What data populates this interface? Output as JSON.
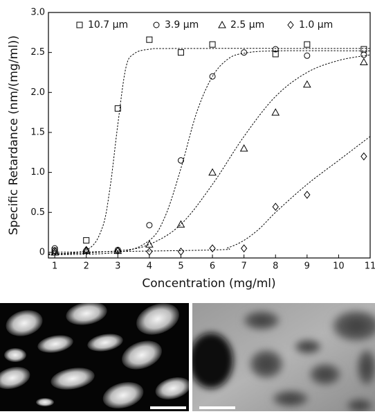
{
  "chart_data": {
    "type": "scatter",
    "x_label": "Concentration  (mg/ml)",
    "y_label": "Specific Retardance  (nm/(mg/ml))",
    "xlim": [
      0.8,
      11
    ],
    "ylim": [
      -0.07,
      3.0
    ],
    "xticks": [
      1,
      2,
      3,
      4,
      5,
      6,
      7,
      8,
      9,
      10,
      11
    ],
    "yticks": [
      0,
      0.5,
      {
        "value": 1,
        "label": "1.0"
      },
      1.5,
      {
        "value": 2,
        "label": "2.0"
      },
      2.5,
      {
        "value": 3,
        "label": "3.0"
      }
    ],
    "legend": "top",
    "series": [
      {
        "name": "10.7 µm",
        "color": "#000000",
        "marker": "square",
        "x": [
          1,
          2,
          3,
          4,
          5,
          6,
          8,
          9,
          10.8
        ],
        "values": [
          0.02,
          0.15,
          1.8,
          2.66,
          2.5,
          2.6,
          2.48,
          2.6,
          2.54
        ]
      },
      {
        "name": "3.9 µm",
        "color": "#000000",
        "marker": "circle",
        "x": [
          1,
          2,
          3,
          4,
          5,
          6,
          7,
          8,
          9,
          10.8
        ],
        "values": [
          0.05,
          0.02,
          0.03,
          0.34,
          1.15,
          2.2,
          2.5,
          2.54,
          2.46,
          2.47
        ]
      },
      {
        "name": "2.5 µm",
        "color": "#000000",
        "marker": "triangle",
        "x": [
          1,
          2,
          3,
          4,
          5,
          6,
          7,
          8,
          9,
          10.8
        ],
        "values": [
          0,
          0.02,
          0.02,
          0.1,
          0.35,
          1.0,
          1.3,
          1.75,
          2.1,
          2.38
        ]
      },
      {
        "name": "1.0 µm",
        "color": "#000000",
        "marker": "diamond",
        "x": [
          1,
          2,
          3,
          4,
          5,
          6,
          7,
          8,
          9,
          10.8
        ],
        "values": [
          0.02,
          0.03,
          0.02,
          0.01,
          0.01,
          0.05,
          0.05,
          0.57,
          0.72,
          1.2
        ]
      }
    ],
    "fits": [
      {
        "x": [
          0.8,
          2,
          2.5,
          2.75,
          3,
          3.25,
          3.5,
          4,
          5,
          11
        ],
        "values": [
          -0.02,
          0.03,
          0.3,
          0.8,
          1.6,
          2.3,
          2.48,
          2.54,
          2.55,
          2.55
        ]
      },
      {
        "x": [
          0.8,
          3,
          4,
          4.5,
          5,
          5.5,
          6,
          6.5,
          7,
          8,
          11
        ],
        "values": [
          -0.03,
          0,
          0.15,
          0.45,
          1.05,
          1.75,
          2.2,
          2.42,
          2.49,
          2.52,
          2.52
        ]
      },
      {
        "x": [
          0.8,
          3,
          4,
          5,
          6,
          7,
          8,
          9,
          10,
          11
        ],
        "values": [
          -0.03,
          0.02,
          0.1,
          0.35,
          0.85,
          1.45,
          1.95,
          2.25,
          2.4,
          2.47
        ]
      },
      {
        "x": [
          0.8,
          6,
          6.5,
          7,
          7.5,
          8,
          9,
          10,
          11
        ],
        "values": [
          0,
          0.03,
          0.06,
          0.15,
          0.3,
          0.5,
          0.85,
          1.15,
          1.45
        ]
      }
    ],
    "fit_style": "dashed"
  }
}
